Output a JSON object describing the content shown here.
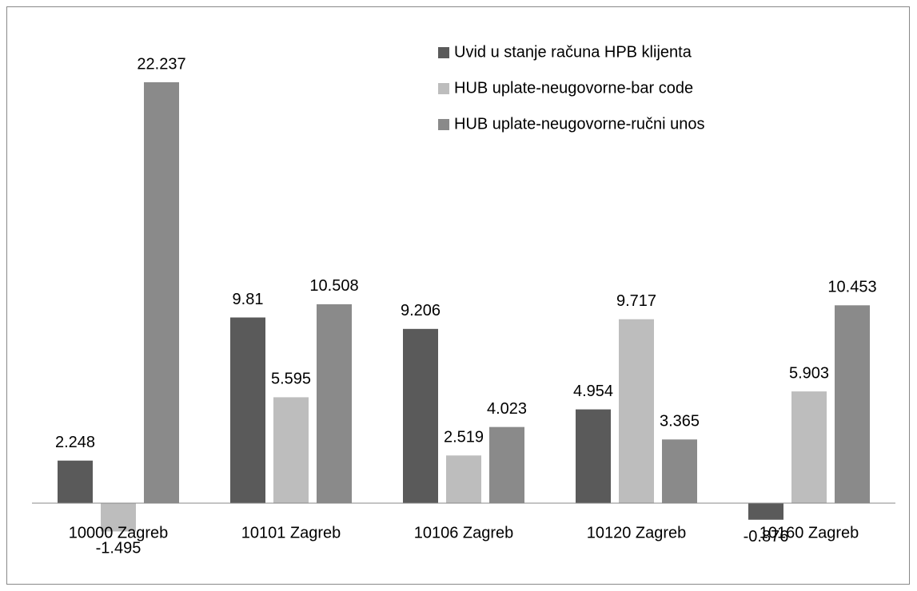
{
  "chart_data": {
    "type": "bar",
    "categories": [
      "10000 Zagreb",
      "10101 Zagreb",
      "10106 Zagreb",
      "10120 Zagreb",
      "10160 Zagreb"
    ],
    "series": [
      {
        "name": "Uvid u stanje računa HPB klijenta",
        "color": "#5a5a5a",
        "values": [
          2.248,
          9.81,
          9.206,
          4.954,
          -0.876
        ]
      },
      {
        "name": "HUB uplate-neugovorne-bar code",
        "color": "#bdbdbd",
        "values": [
          -1.495,
          5.595,
          2.519,
          9.717,
          5.903
        ]
      },
      {
        "name": "HUB uplate-neugovorne-ručni unos",
        "color": "#8a8a8a",
        "values": [
          22.237,
          10.508,
          4.023,
          3.365,
          10.453
        ]
      }
    ],
    "legend": "top-right"
  }
}
